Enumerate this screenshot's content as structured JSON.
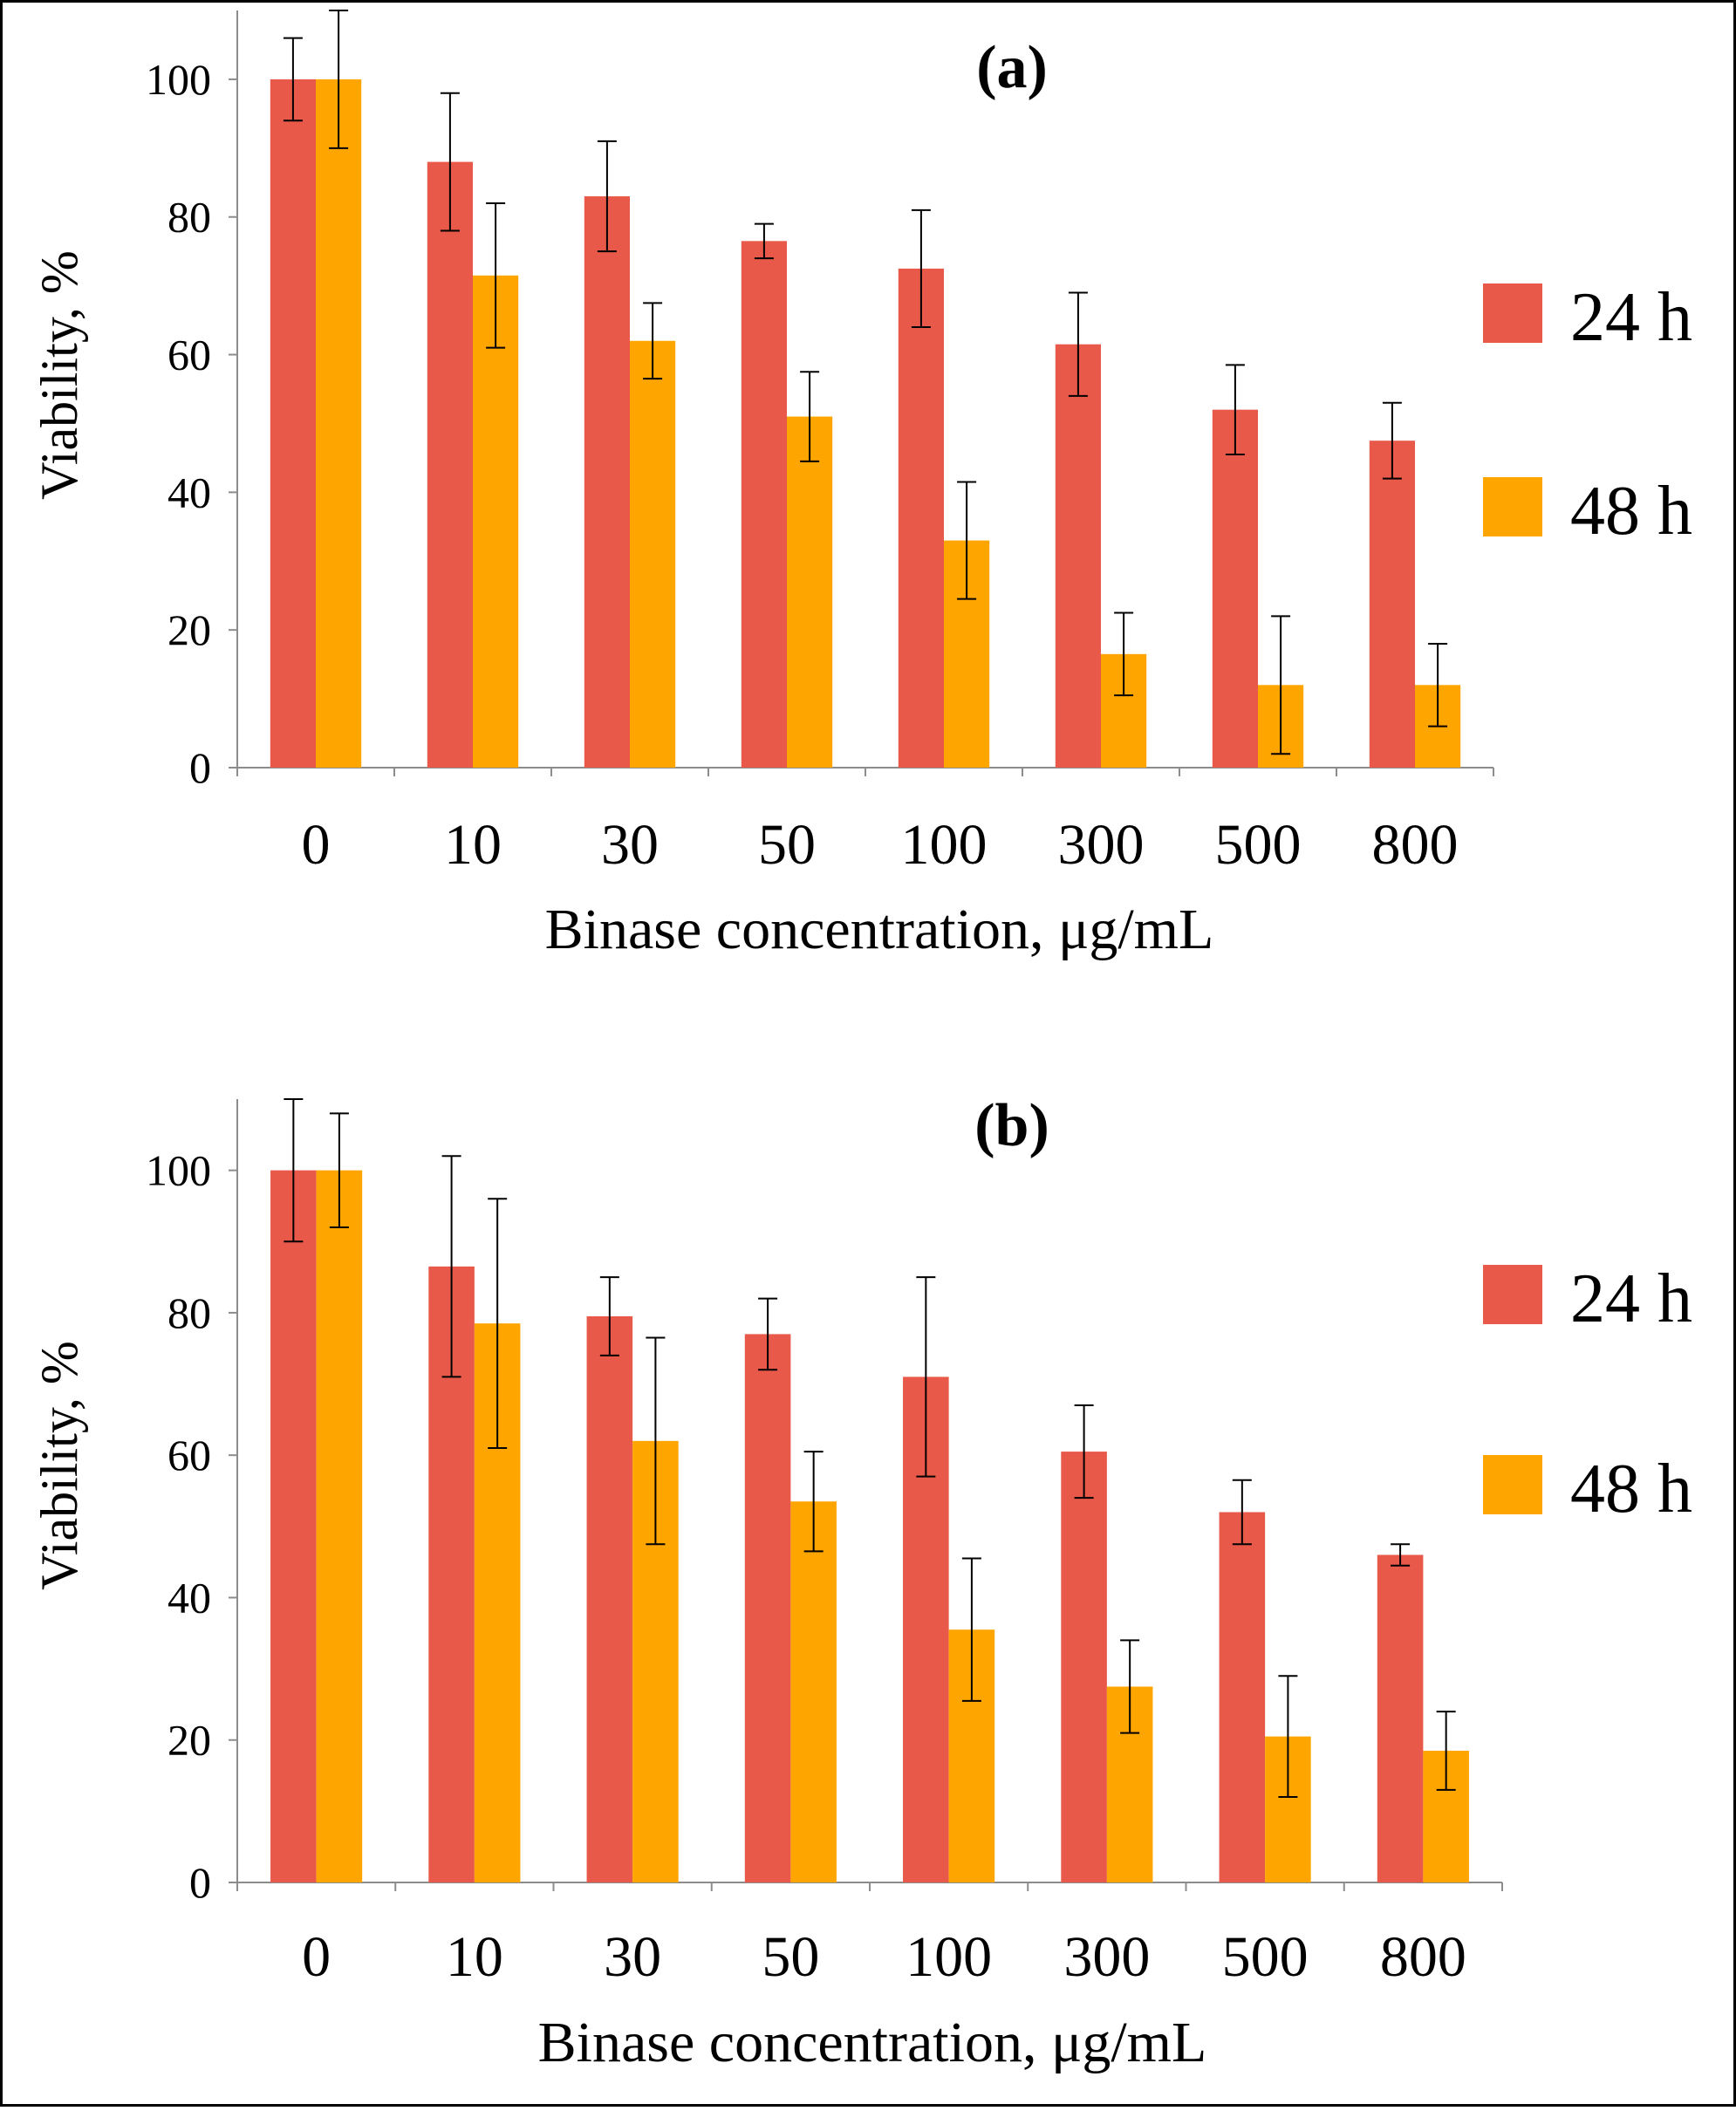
{
  "chart_data": [
    {
      "type": "bar",
      "title": "(a)",
      "xlabel": "Binase concentration, μg/mL",
      "ylabel": "Viability, %",
      "ylim": [
        0,
        110
      ],
      "yticks": [
        0,
        20,
        40,
        60,
        80,
        100
      ],
      "categories": [
        "0",
        "10",
        "30",
        "50",
        "100",
        "300",
        "500",
        "800"
      ],
      "series": [
        {
          "name": "24 h",
          "color": "#e8594a",
          "values": [
            100,
            88,
            83,
            76.5,
            72.5,
            61.5,
            52,
            47.5
          ],
          "errors": [
            6,
            10,
            8,
            2.5,
            8.5,
            7.5,
            6.5,
            5.5
          ]
        },
        {
          "name": "48 h",
          "color": "#ffa500",
          "values": [
            100,
            71.5,
            62,
            51,
            33,
            16.5,
            12,
            12
          ],
          "errors": [
            10,
            10.5,
            5.5,
            6.5,
            8.5,
            6,
            10,
            6
          ]
        }
      ],
      "legend": "right",
      "grid": false
    },
    {
      "type": "bar",
      "title": "(b)",
      "xlabel": "Binase concentration, μg/mL",
      "ylabel": "Viability, %",
      "ylim": [
        0,
        110
      ],
      "yticks": [
        0,
        20,
        40,
        60,
        80,
        100
      ],
      "categories": [
        "0",
        "10",
        "30",
        "50",
        "100",
        "300",
        "500",
        "800"
      ],
      "series": [
        {
          "name": "24 h",
          "color": "#e8594a",
          "values": [
            100,
            86.5,
            79.5,
            77,
            71,
            60.5,
            52,
            46
          ],
          "errors": [
            10,
            15.5,
            5.5,
            5,
            14,
            6.5,
            4.5,
            1.5
          ]
        },
        {
          "name": "48 h",
          "color": "#ffa500",
          "values": [
            100,
            78.5,
            62,
            53.5,
            35.5,
            27.5,
            20.5,
            18.5
          ],
          "errors": [
            8,
            17.5,
            14.5,
            7,
            10,
            6.5,
            8.5,
            5.5
          ]
        }
      ],
      "legend": "right",
      "grid": false
    }
  ]
}
